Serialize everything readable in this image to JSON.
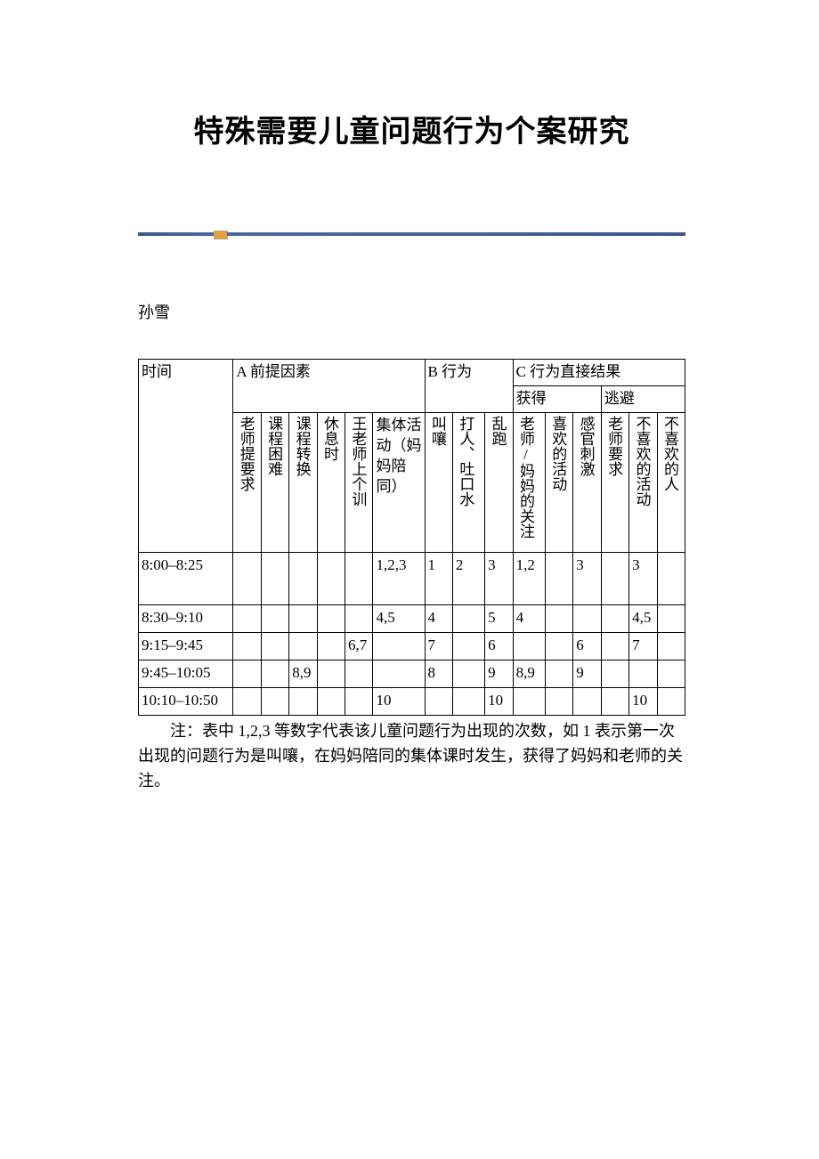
{
  "title": "特殊需要儿童问题行为个案研究",
  "author": "孙雪",
  "table": {
    "top_headers": {
      "time": "时间",
      "A": "A 前提因素",
      "B": "B 行为",
      "C": "C 行为直接结果",
      "C_gain": "获得",
      "C_avoid": "逃避"
    },
    "col_headers": {
      "a1": "老师提要求",
      "a2": "课程困难",
      "a3": "课程转换",
      "a4": "休息时",
      "a5": "王老师上个训",
      "a6": "集体活动（妈妈陪同）",
      "b1": "叫嚷",
      "b2": "打人、吐口水",
      "b3": "乱跑",
      "c1": "老师/妈妈的关注",
      "c2": "喜欢的活动",
      "c3": "感官刺激",
      "c4": "老师要求",
      "c5": "不喜欢的活动",
      "c6": "不喜欢的人"
    },
    "rows": [
      {
        "time": "8:00–8:25",
        "a1": "",
        "a2": "",
        "a3": "",
        "a4": "",
        "a5": "",
        "a6": "1,2,3",
        "b1": "1",
        "b2": "2",
        "b3": "3",
        "c1": "1,2",
        "c2": "",
        "c3": "3",
        "c4": "",
        "c5": "3",
        "c6": ""
      },
      {
        "time": "8:30–9:10",
        "a1": "",
        "a2": "",
        "a3": "",
        "a4": "",
        "a5": "",
        "a6": "4,5",
        "b1": "4",
        "b2": "",
        "b3": "5",
        "c1": "4",
        "c2": "",
        "c3": "",
        "c4": "",
        "c5": "4,5",
        "c6": ""
      },
      {
        "time": "9:15–9:45",
        "a1": "",
        "a2": "",
        "a3": "",
        "a4": "",
        "a5": "6,7",
        "a6": "",
        "b1": "7",
        "b2": "",
        "b3": "6",
        "c1": "",
        "c2": "",
        "c3": "6",
        "c4": "",
        "c5": "7",
        "c6": ""
      },
      {
        "time": "9:45–10:05",
        "a1": "",
        "a2": "",
        "a3": "8,9",
        "a4": "",
        "a5": "",
        "a6": "",
        "b1": "8",
        "b2": "",
        "b3": "9",
        "c1": "8,9",
        "c2": "",
        "c3": "9",
        "c4": "",
        "c5": "",
        "c6": ""
      },
      {
        "time": "10:10–10:50",
        "a1": "",
        "a2": "",
        "a3": "",
        "a4": "",
        "a5": "",
        "a6": "10",
        "b1": "",
        "b2": "",
        "b3": "10",
        "c1": "",
        "c2": "",
        "c3": "",
        "c4": "",
        "c5": "10",
        "c6": ""
      }
    ]
  },
  "note": "注：表中 1,2,3 等数字代表该儿童问题行为出现的次数，如 1 表示第一次出现的问题行为是叫嚷，在妈妈陪同的集体课时发生，获得了妈妈和老师的关注。",
  "colors": {
    "text": "#000000",
    "background": "#ffffff",
    "border": "#000000",
    "divider_blue": "#3a5a8a",
    "divider_marker": "#e8a030"
  }
}
